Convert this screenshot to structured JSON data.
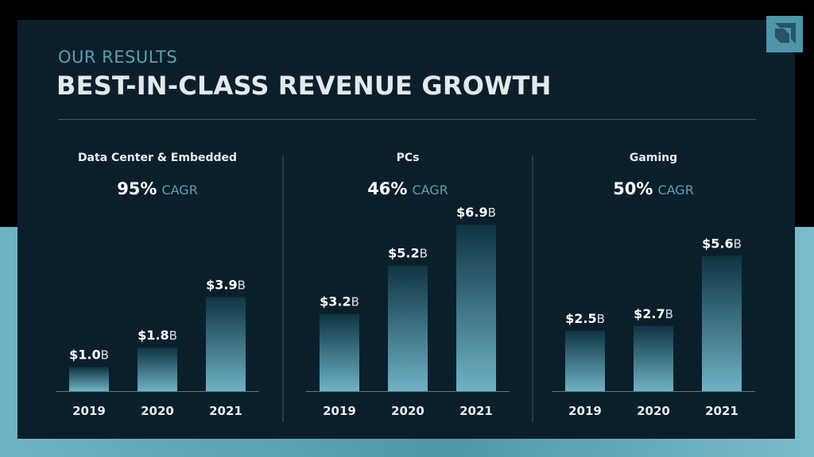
{
  "header": {
    "eyebrow": "OUR RESULTS",
    "title": "BEST-IN-CLASS REVENUE GROWTH"
  },
  "logo": {
    "icon": "amd-arrow-logo-icon"
  },
  "colors": {
    "background": "#0b1f2b",
    "accent": "#4d96ab",
    "bar_top": "#0e3442",
    "bar_bottom": "#6fb2c6"
  },
  "chart_data": [
    {
      "type": "bar",
      "title": "Data Center & Embedded",
      "cagr_value": "95%",
      "cagr_label": "CAGR",
      "categories": [
        "2019",
        "2020",
        "2021"
      ],
      "values": [
        1.0,
        1.8,
        3.9
      ],
      "value_labels": [
        "$1.0B",
        "$1.8B",
        "$3.9B"
      ],
      "unit": "$B"
    },
    {
      "type": "bar",
      "title": "PCs",
      "cagr_value": "46%",
      "cagr_label": "CAGR",
      "categories": [
        "2019",
        "2020",
        "2021"
      ],
      "values": [
        3.2,
        5.2,
        6.9
      ],
      "value_labels": [
        "$3.2B",
        "$5.2B",
        "$6.9B"
      ],
      "unit": "$B"
    },
    {
      "type": "bar",
      "title": "Gaming",
      "cagr_value": "50%",
      "cagr_label": "CAGR",
      "categories": [
        "2019",
        "2020",
        "2021"
      ],
      "values": [
        2.5,
        2.7,
        5.6
      ],
      "value_labels": [
        "$2.5B",
        "$2.7B",
        "$5.6B"
      ],
      "unit": "$B"
    }
  ]
}
